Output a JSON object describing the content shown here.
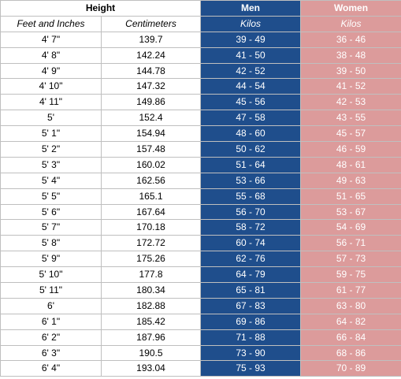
{
  "header": {
    "height_label": "Height",
    "men_label": "Men",
    "women_label": "Women",
    "feet_inches_label": "Feet and Inches",
    "centimeters_label": "Centimeters",
    "men_unit": "Kilos",
    "women_unit": "Kilos"
  },
  "rows": [
    {
      "ft": "4' 7\"",
      "cm": "139.7",
      "men": "39 - 49",
      "women": "36 - 46"
    },
    {
      "ft": "4' 8\"",
      "cm": "142.24",
      "men": "41 - 50",
      "women": "38 - 48"
    },
    {
      "ft": "4' 9\"",
      "cm": "144.78",
      "men": "42 - 52",
      "women": "39 - 50"
    },
    {
      "ft": "4' 10\"",
      "cm": "147.32",
      "men": "44 - 54",
      "women": "41 - 52"
    },
    {
      "ft": "4' 11\"",
      "cm": "149.86",
      "men": "45 - 56",
      "women": "42 - 53"
    },
    {
      "ft": "5'",
      "cm": "152.4",
      "men": "47 - 58",
      "women": "43 - 55"
    },
    {
      "ft": "5' 1\"",
      "cm": "154.94",
      "men": "48 - 60",
      "women": "45 - 57"
    },
    {
      "ft": "5' 2\"",
      "cm": "157.48",
      "men": "50 - 62",
      "women": "46 - 59"
    },
    {
      "ft": "5' 3\"",
      "cm": "160.02",
      "men": "51 - 64",
      "women": "48 - 61"
    },
    {
      "ft": "5' 4\"",
      "cm": "162.56",
      "men": "53 - 66",
      "women": "49 - 63"
    },
    {
      "ft": "5' 5\"",
      "cm": "165.1",
      "men": "55 - 68",
      "women": "51 - 65"
    },
    {
      "ft": "5' 6\"",
      "cm": "167.64",
      "men": "56 - 70",
      "women": "53 - 67"
    },
    {
      "ft": "5' 7\"",
      "cm": "170.18",
      "men": "58 - 72",
      "women": "54 - 69"
    },
    {
      "ft": "5' 8\"",
      "cm": "172.72",
      "men": "60 - 74",
      "women": "56 - 71"
    },
    {
      "ft": "5' 9\"",
      "cm": "175.26",
      "men": "62 - 76",
      "women": "57 - 73"
    },
    {
      "ft": "5' 10\"",
      "cm": "177.8",
      "men": "64 - 79",
      "women": "59 - 75"
    },
    {
      "ft": "5' 11\"",
      "cm": "180.34",
      "men": "65 - 81",
      "women": "61 - 77"
    },
    {
      "ft": "6'",
      "cm": "182.88",
      "men": "67 - 83",
      "women": "63 - 80"
    },
    {
      "ft": "6' 1\"",
      "cm": "185.42",
      "men": "69 - 86",
      "women": "64 - 82"
    },
    {
      "ft": "6' 2\"",
      "cm": "187.96",
      "men": "71 - 88",
      "women": "66 - 84"
    },
    {
      "ft": "6' 3\"",
      "cm": "190.5",
      "men": "73 - 90",
      "women": "68 - 86"
    },
    {
      "ft": "6' 4\"",
      "cm": "193.04",
      "men": "75 - 93",
      "women": "70 - 89"
    }
  ],
  "colors": {
    "men_fill": "#1f4e8c",
    "women_fill": "#dc9b9b",
    "grid": "#bfbfbf"
  }
}
